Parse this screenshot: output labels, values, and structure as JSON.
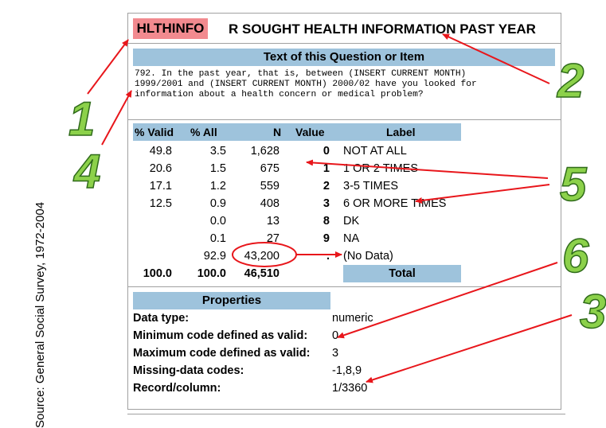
{
  "source": "Source: General Social Survey, 1972-2004",
  "variable": {
    "name": "HLTHINFO",
    "title": "R SOUGHT HEALTH INFORMATION PAST YEAR"
  },
  "question": {
    "header": "Text of this Question or Item",
    "text": "792. In the past year, that is, between (INSERT CURRENT MONTH)\n1999/2001 and (INSERT CURRENT MONTH) 2000/02 have you looked for\ninformation about a health concern or medical problem?"
  },
  "frequencies": {
    "columns": [
      "% Valid",
      "% All",
      "N",
      "Value",
      "Label"
    ],
    "rows": [
      {
        "valid": "49.8",
        "all": "3.5",
        "n": "1,628",
        "value": "0",
        "label": "NOT AT ALL"
      },
      {
        "valid": "20.6",
        "all": "1.5",
        "n": "675",
        "value": "1",
        "label": "1 OR 2 TIMES"
      },
      {
        "valid": "17.1",
        "all": "1.2",
        "n": "559",
        "value": "2",
        "label": "3-5 TIMES"
      },
      {
        "valid": "12.5",
        "all": "0.9",
        "n": "408",
        "value": "3",
        "label": "6 OR MORE TIMES"
      },
      {
        "valid": "",
        "all": "0.0",
        "n": "13",
        "value": "8",
        "label": "DK"
      },
      {
        "valid": "",
        "all": "0.1",
        "n": "27",
        "value": "9",
        "label": "NA"
      },
      {
        "valid": "",
        "all": "92.9",
        "n": "43,200",
        "value": ".",
        "label": "(No Data)"
      }
    ],
    "total": {
      "valid": "100.0",
      "all": "100.0",
      "n": "46,510",
      "label": "Total"
    }
  },
  "properties": {
    "header": "Properties",
    "items": [
      {
        "label": "Data type:",
        "value": "numeric"
      },
      {
        "label": "Minimum code defined as valid:",
        "value": "0"
      },
      {
        "label": "Maximum code defined as valid:",
        "value": "3"
      },
      {
        "label": "Missing-data codes:",
        "value": "-1,8,9"
      },
      {
        "label": "Record/column:",
        "value": "1/3360"
      }
    ]
  },
  "annotations": {
    "one": "1",
    "two": "2",
    "three": "3",
    "four": "4",
    "five": "5",
    "six": "6",
    "arrow_color": "#e8161b",
    "number_color": "#8cd14a"
  }
}
